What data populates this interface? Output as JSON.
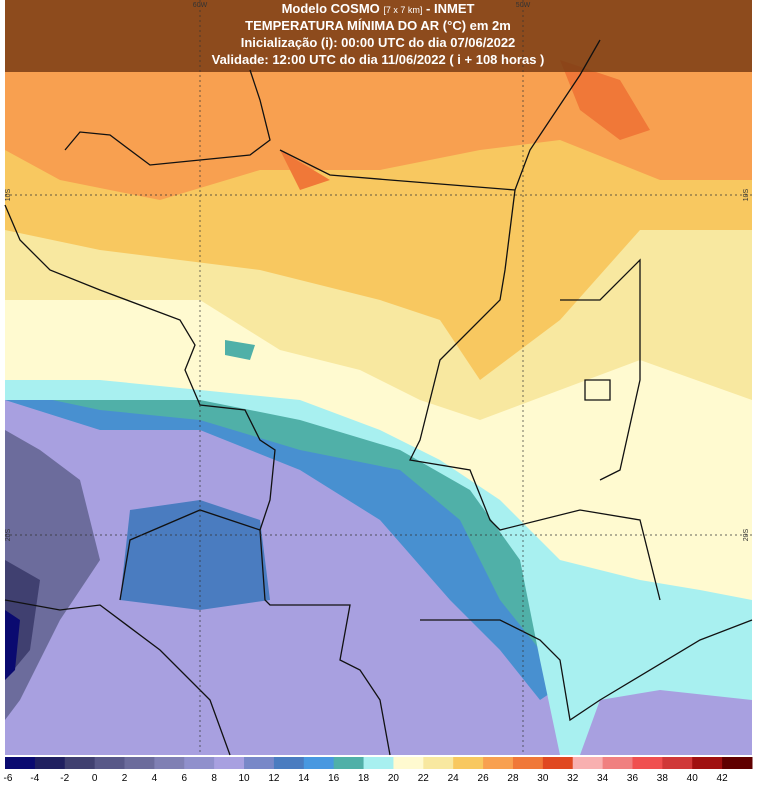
{
  "header": {
    "model": "Modelo COSMO",
    "resolution": "[7 x 7 km]",
    "source": "- INMET",
    "variable": "TEMPERATURA MÍNIMA DO AR (°C) em 2m",
    "init": "Inicialização (i): 00:00 UTC do dia 07/06/2022",
    "valid": "Validade: 12:00 UTC do dia 11/06/2022 ( i + 108 horas )"
  },
  "grid_labels": {
    "lon": [
      "60W",
      "50W"
    ],
    "lat": [
      "10S",
      "20S"
    ]
  },
  "colorbar": {
    "labels": [
      "-6",
      "-4",
      "-2",
      "0",
      "2",
      "4",
      "6",
      "8",
      "10",
      "12",
      "14",
      "16",
      "18",
      "20",
      "22",
      "24",
      "26",
      "28",
      "30",
      "32",
      "34",
      "36",
      "38",
      "40",
      "42"
    ],
    "colors": [
      "#0a0a70",
      "#202060",
      "#404070",
      "#585888",
      "#6c6c9c",
      "#8080b4",
      "#9090cc",
      "#a8a0e0",
      "#7888c8",
      "#4a7cc0",
      "#4898e0",
      "#50b0a8",
      "#a8f0f0",
      "#fffad0",
      "#f8e8a0",
      "#f8c860",
      "#f8a050",
      "#f07838",
      "#e04820",
      "#f8b0b0",
      "#f08080",
      "#f05050",
      "#d03838",
      "#a01010",
      "#600000"
    ]
  }
}
